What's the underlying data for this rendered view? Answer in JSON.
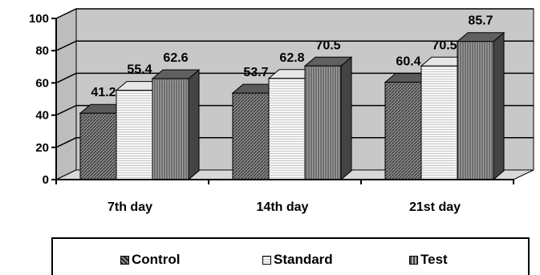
{
  "chart_data": {
    "type": "bar",
    "categories": [
      "7th day",
      "14th day",
      "21st day"
    ],
    "series": [
      {
        "name": "Control",
        "values": [
          41.2,
          53.7,
          60.4
        ]
      },
      {
        "name": "Standard",
        "values": [
          55.4,
          62.8,
          70.5
        ]
      },
      {
        "name": "Test",
        "values": [
          62.6,
          70.5,
          85.7
        ]
      }
    ],
    "yticks": [
      0,
      20,
      40,
      60,
      80,
      100
    ],
    "ylim": [
      0,
      100
    ],
    "grid": true,
    "three_d": true,
    "legend_position": "bottom",
    "colors": {
      "control": "#6a6a6a",
      "standard": "#f2f2f2",
      "test": "#7a7a7a",
      "wall": "#c8c8c8"
    }
  }
}
